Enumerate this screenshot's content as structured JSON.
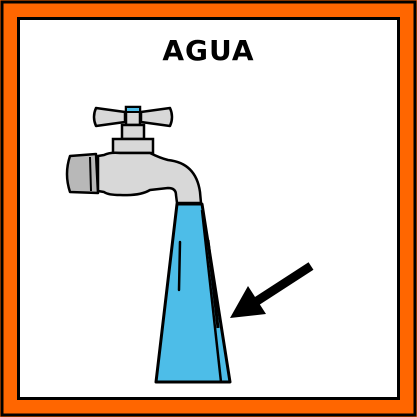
{
  "title": "AGUA",
  "colors": {
    "frame": "#ff6600",
    "water": "#4dbde8",
    "faucet": "#d8d8d8",
    "outline": "#000000"
  },
  "icons": [
    "faucet-icon",
    "water-stream-icon",
    "arrow-icon"
  ]
}
